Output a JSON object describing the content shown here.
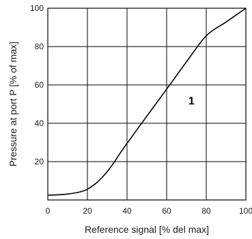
{
  "chart_data": {
    "type": "line",
    "title": "",
    "xlabel": "Reference signal [% del max]",
    "ylabel": "Pressure at port P [% of max]",
    "xlim": [
      0,
      100
    ],
    "ylim": [
      0,
      100
    ],
    "xticks": [
      0,
      20,
      40,
      60,
      80,
      100
    ],
    "yticks": [
      20,
      40,
      60,
      80,
      100
    ],
    "grid": true,
    "series": [
      {
        "name": "1",
        "color": "#000000",
        "x": [
          0,
          5,
          10,
          15,
          18,
          20,
          22,
          25,
          28,
          30,
          33,
          36,
          40,
          50,
          60,
          70,
          80,
          90,
          100
        ],
        "y": [
          2.5,
          2.7,
          3.1,
          3.9,
          4.7,
          5.6,
          6.9,
          9.3,
          12.4,
          14.8,
          18.9,
          23.6,
          29.5,
          43.7,
          57.8,
          72.0,
          85.6,
          92.8,
          100
        ]
      }
    ],
    "annotations": [
      {
        "text": "1",
        "x": 71,
        "y": 52
      }
    ]
  }
}
